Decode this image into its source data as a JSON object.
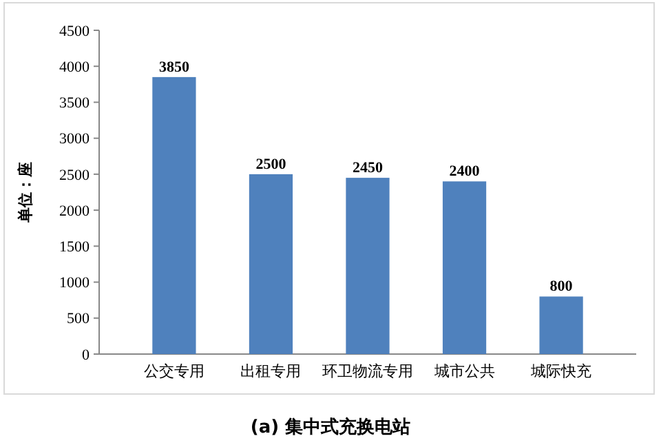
{
  "chart_data": {
    "type": "bar",
    "title": "(a)  集中式充换电站",
    "ylabel": "单位：座",
    "categories": [
      "公交专用",
      "出租专用",
      "环卫物流专用",
      "城市公共",
      "城际快充"
    ],
    "values": [
      3850,
      2500,
      2450,
      2400,
      800
    ],
    "color": "#4f81bd",
    "ylim": [
      0,
      4500
    ],
    "yticks": [
      0,
      500,
      1000,
      1500,
      2000,
      2500,
      3000,
      3500,
      4000,
      4500
    ],
    "grid": false,
    "data_labels": true
  }
}
